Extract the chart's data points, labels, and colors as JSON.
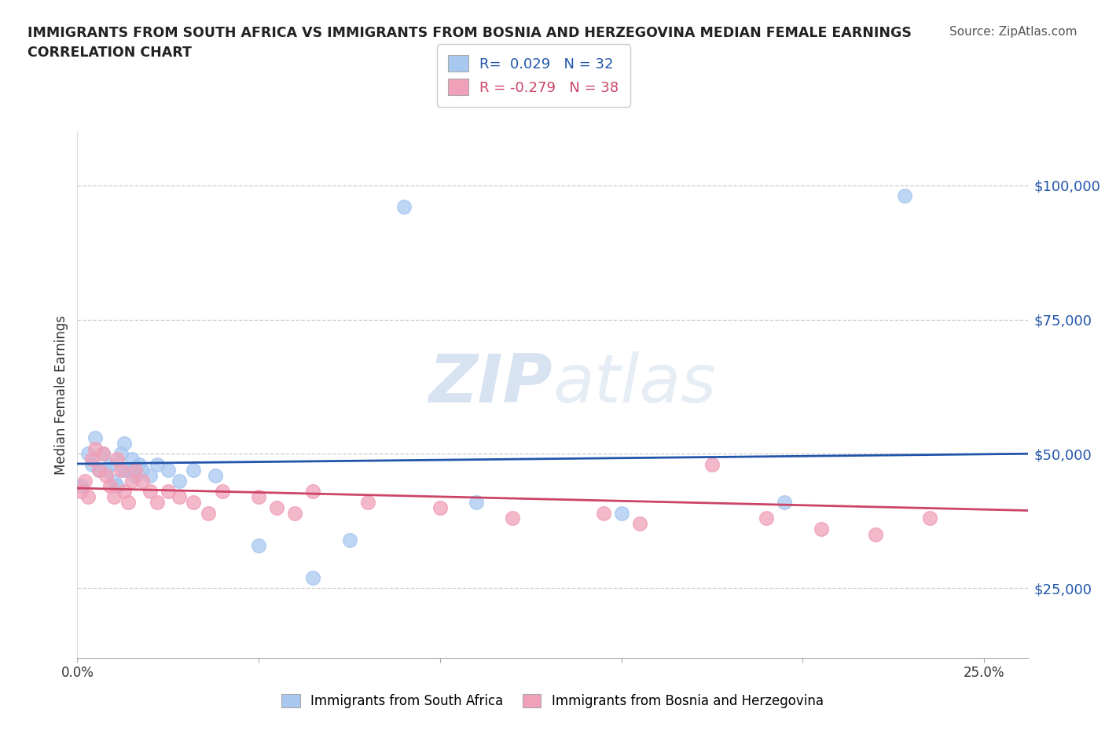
{
  "title_line1": "IMMIGRANTS FROM SOUTH AFRICA VS IMMIGRANTS FROM BOSNIA AND HERZEGOVINA MEDIAN FEMALE EARNINGS",
  "title_line2": "CORRELATION CHART",
  "source_text": "Source: ZipAtlas.com",
  "ylabel": "Median Female Earnings",
  "watermark": "ZIPatlas",
  "legend1_label": "Immigrants from South Africa",
  "legend2_label": "Immigrants from Bosnia and Herzegovina",
  "R1": 0.029,
  "N1": 32,
  "R2": -0.279,
  "N2": 38,
  "color_blue": "#A8C8F0",
  "color_pink": "#F0A0B8",
  "color_blue_line": "#2255AA",
  "color_pink_line": "#CC4466",
  "yticks": [
    25000,
    50000,
    75000,
    100000
  ],
  "ylim": [
    12000,
    110000
  ],
  "xlim": [
    0.0,
    0.262
  ],
  "xticks": [
    0.0,
    0.05,
    0.1,
    0.15,
    0.2,
    0.25
  ],
  "blue_x": [
    0.001,
    0.003,
    0.004,
    0.005,
    0.006,
    0.007,
    0.008,
    0.009,
    0.01,
    0.011,
    0.012,
    0.013,
    0.013,
    0.014,
    0.015,
    0.016,
    0.017,
    0.018,
    0.02,
    0.022,
    0.025,
    0.028,
    0.032,
    0.038,
    0.05,
    0.065,
    0.075,
    0.09,
    0.11,
    0.15,
    0.195,
    0.228
  ],
  "blue_y": [
    44000,
    50000,
    48000,
    53000,
    47000,
    50000,
    47000,
    48000,
    45000,
    44000,
    50000,
    52000,
    47000,
    47000,
    49000,
    46000,
    48000,
    47000,
    46000,
    48000,
    47000,
    45000,
    47000,
    46000,
    33000,
    27000,
    34000,
    96000,
    41000,
    39000,
    41000,
    98000
  ],
  "pink_x": [
    0.001,
    0.002,
    0.003,
    0.004,
    0.005,
    0.006,
    0.007,
    0.008,
    0.009,
    0.01,
    0.011,
    0.012,
    0.013,
    0.014,
    0.015,
    0.016,
    0.018,
    0.02,
    0.022,
    0.025,
    0.028,
    0.032,
    0.036,
    0.04,
    0.05,
    0.055,
    0.06,
    0.065,
    0.08,
    0.1,
    0.12,
    0.145,
    0.155,
    0.175,
    0.19,
    0.205,
    0.22,
    0.235
  ],
  "pink_y": [
    43000,
    45000,
    42000,
    49000,
    51000,
    47000,
    50000,
    46000,
    44000,
    42000,
    49000,
    47000,
    43000,
    41000,
    45000,
    47000,
    45000,
    43000,
    41000,
    43000,
    42000,
    41000,
    39000,
    43000,
    42000,
    40000,
    39000,
    43000,
    41000,
    40000,
    38000,
    39000,
    37000,
    48000,
    38000,
    36000,
    35000,
    38000
  ]
}
